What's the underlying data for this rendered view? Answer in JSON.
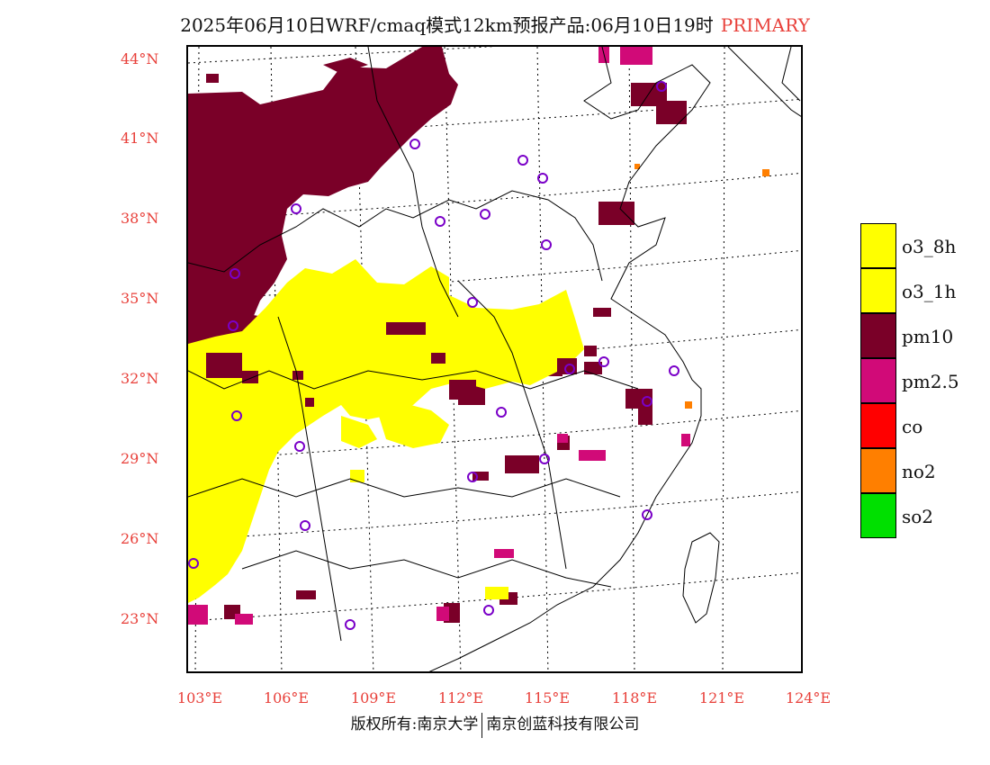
{
  "title": {
    "main": "2025年06月10日WRF/cmaq模式12km预报产品:06月10日19时",
    "tag": "PRIMARY"
  },
  "latitude_labels": [
    "44°N",
    "41°N",
    "38°N",
    "35°N",
    "32°N",
    "29°N",
    "26°N",
    "23°N"
  ],
  "longitude_labels": [
    "103°E",
    "106°E",
    "109°E",
    "112°E",
    "115°E",
    "118°E",
    "121°E",
    "124°E"
  ],
  "legend": [
    {
      "label": "o3_8h",
      "color": "#ffff00"
    },
    {
      "label": "o3_1h",
      "color": "#ffff00"
    },
    {
      "label": "pm10",
      "color": "#7a0028"
    },
    {
      "label": "pm2.5",
      "color": "#d10a78"
    },
    {
      "label": "co",
      "color": "#ff0000"
    },
    {
      "label": "no2",
      "color": "#ff7f00"
    },
    {
      "label": "so2",
      "color": "#00e000"
    }
  ],
  "copyright": {
    "left": "版权所有:南京大学",
    "right": "南京创蓝科技有限公司"
  }
}
